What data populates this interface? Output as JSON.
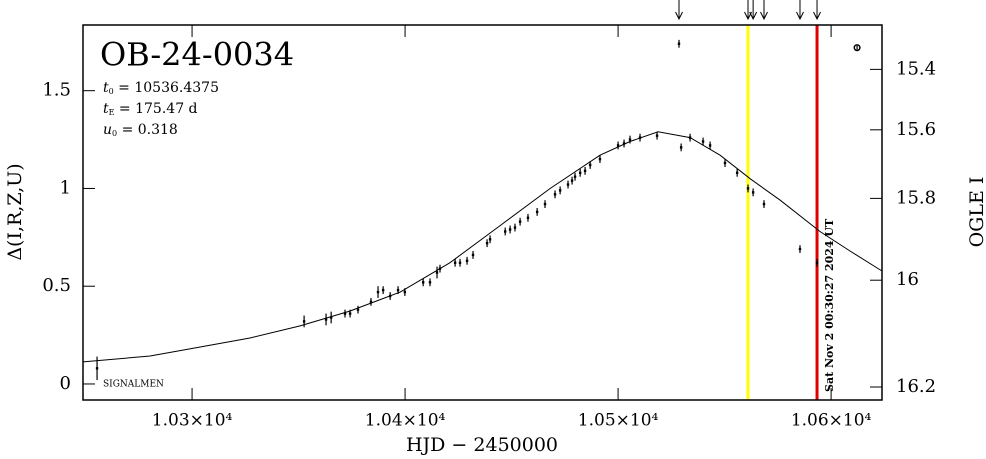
{
  "chart_data": {
    "type": "scatter",
    "title": "OB-24-0034",
    "params": [
      {
        "symbol": "t",
        "subscript": "0",
        "text": " = 10536.4375"
      },
      {
        "symbol": "t",
        "subscript": "E",
        "text": " = 175.47 d"
      },
      {
        "symbol": "u",
        "subscript": "0",
        "text": " = 0.318"
      }
    ],
    "note": "SIGNALMEN",
    "timestamp": "Sat Nov  2 00:30:27 2024 UT",
    "xlabel": "HJD − 2450000",
    "ylabel": "Δ(I,R,Z,U)",
    "y2label": "OGLE I",
    "xlim": [
      10248.8,
      10623.9
    ],
    "xticks": [
      {
        "value": 10300,
        "label": "1.03×10⁴"
      },
      {
        "value": 10400,
        "label": "1.04×10⁴"
      },
      {
        "value": 10500,
        "label": "1.05×10⁴"
      },
      {
        "value": 10600,
        "label": "1.06×10⁴"
      }
    ],
    "ylim": [
      -0.082,
      1.836
    ],
    "yticks": [
      0,
      0.5,
      1,
      1.5
    ],
    "y2lim": [
      16.22,
      15.24
    ],
    "y2ticks": [
      15.4,
      15.6,
      15.8,
      16,
      16.2
    ],
    "y2scale": "log-flux",
    "y2blend": 0.713,
    "series": [
      {
        "color": "#000000",
        "marker": "dot",
        "x": [
          10255.4,
          10352.6,
          10362.9,
          10365.3,
          10371.8,
          10374.2,
          10377.9,
          10384.0,
          10387.3,
          10389.7,
          10393.0,
          10396.7,
          10399.9,
          10408.5,
          10411.7,
          10415.0,
          10416.4,
          10423.5,
          10425.8,
          10429.1,
          10431.9,
          10438.5,
          10439.9,
          10447.0,
          10449.3,
          10451.6,
          10454.0,
          10457.7,
          10462.0,
          10465.7,
          10470.4,
          10472.8,
          10476.5,
          10478.4,
          10479.8,
          10482.2,
          10484.5,
          10486.9,
          10491.5,
          10500.0,
          10502.8,
          10505.6,
          10510.3,
          10518.3,
          10528.6,
          10529.6,
          10533.8,
          10539.9,
          10543.2,
          10550.2,
          10555.9,
          10561.0,
          10563.4,
          10568.5,
          10585.4,
          10593.4
        ],
        "values": [
          0.08,
          0.32,
          0.33,
          0.34,
          0.36,
          0.36,
          0.38,
          0.42,
          0.47,
          0.48,
          0.45,
          0.48,
          0.47,
          0.52,
          0.52,
          0.57,
          0.59,
          0.62,
          0.62,
          0.63,
          0.66,
          0.72,
          0.74,
          0.78,
          0.79,
          0.8,
          0.83,
          0.85,
          0.88,
          0.92,
          0.97,
          0.99,
          1.02,
          1.04,
          1.06,
          1.08,
          1.09,
          1.12,
          1.15,
          1.22,
          1.23,
          1.25,
          1.26,
          1.27,
          1.74,
          1.21,
          1.26,
          1.24,
          1.22,
          1.13,
          1.08,
          1.0,
          0.98,
          0.92,
          0.69,
          0.62
        ],
        "errors": [
          0.06,
          0.03,
          0.03,
          0.03,
          0.02,
          0.02,
          0.02,
          0.02,
          0.03,
          0.02,
          0.02,
          0.02,
          0.02,
          0.02,
          0.02,
          0.03,
          0.02,
          0.02,
          0.02,
          0.02,
          0.02,
          0.02,
          0.02,
          0.02,
          0.02,
          0.02,
          0.02,
          0.02,
          0.02,
          0.02,
          0.02,
          0.02,
          0.02,
          0.02,
          0.02,
          0.02,
          0.02,
          0.02,
          0.02,
          0.02,
          0.02,
          0.02,
          0.02,
          0.02,
          0.02,
          0.02,
          0.02,
          0.02,
          0.02,
          0.02,
          0.02,
          0.02,
          0.02,
          0.02,
          0.02,
          0.02
        ]
      },
      {
        "color": "#000000",
        "marker": "circle",
        "x": [
          10612.2
        ],
        "values": [
          1.72
        ],
        "errors": [
          0.01
        ]
      }
    ],
    "model": {
      "color": "#000000",
      "x": [
        10248.8,
        10280.3,
        10303.8,
        10327.2,
        10350.7,
        10374.2,
        10397.7,
        10421.1,
        10444.6,
        10468.1,
        10491.5,
        10505.6,
        10518.8,
        10533.8,
        10547.9,
        10562.0,
        10576.1,
        10594.8,
        10608.9,
        10623.9
      ],
      "values": [
        0.113,
        0.143,
        0.189,
        0.235,
        0.297,
        0.373,
        0.47,
        0.62,
        0.81,
        1.0,
        1.17,
        1.24,
        1.29,
        1.26,
        1.17,
        1.05,
        0.94,
        0.78,
        0.68,
        0.578
      ]
    },
    "vlines": [
      {
        "x": 10561.0,
        "color": "#ffff00"
      },
      {
        "x": 10593.4,
        "color": "#e00000"
      }
    ],
    "arrows": [
      10528.6,
      10561.0,
      10563.4,
      10568.5,
      10585.4,
      10593.4
    ]
  }
}
